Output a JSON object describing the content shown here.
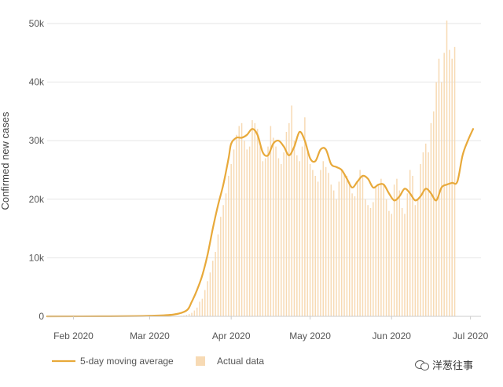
{
  "chart_data": {
    "type": "bar",
    "title": "",
    "ylabel": "Confirmed new cases",
    "xlabel": "",
    "ylim": [
      0,
      50000
    ],
    "yticks": [
      {
        "value": 0,
        "label": "0"
      },
      {
        "value": 10000,
        "label": "10k"
      },
      {
        "value": 20000,
        "label": "20k"
      },
      {
        "value": 30000,
        "label": "30k"
      },
      {
        "value": 40000,
        "label": "40k"
      },
      {
        "value": 50000,
        "label": "50k"
      }
    ],
    "xticks": [
      {
        "date": "2020-02-01",
        "label": "Feb 2020"
      },
      {
        "date": "2020-03-01",
        "label": "Mar 2020"
      },
      {
        "date": "2020-04-01",
        "label": "Apr 2020"
      },
      {
        "date": "2020-05-01",
        "label": "May 2020"
      },
      {
        "date": "2020-06-01",
        "label": "Jun 2020"
      },
      {
        "date": "2020-07-01",
        "label": "Jul 2020"
      }
    ],
    "x_range": [
      "2020-01-22",
      "2020-07-05"
    ],
    "grid": true,
    "legend_position": "bottom-left",
    "series": [
      {
        "name": "5-day moving average",
        "type": "line",
        "color": "#e8a93a",
        "x": [
          "2020-01-22",
          "2020-02-15",
          "2020-03-01",
          "2020-03-10",
          "2020-03-15",
          "2020-03-17",
          "2020-03-19",
          "2020-03-21",
          "2020-03-23",
          "2020-03-25",
          "2020-03-27",
          "2020-03-29",
          "2020-03-31",
          "2020-04-01",
          "2020-04-03",
          "2020-04-05",
          "2020-04-07",
          "2020-04-09",
          "2020-04-11",
          "2020-04-13",
          "2020-04-15",
          "2020-04-17",
          "2020-04-19",
          "2020-04-21",
          "2020-04-23",
          "2020-04-25",
          "2020-04-27",
          "2020-04-29",
          "2020-05-01",
          "2020-05-03",
          "2020-05-05",
          "2020-05-07",
          "2020-05-09",
          "2020-05-11",
          "2020-05-13",
          "2020-05-15",
          "2020-05-17",
          "2020-05-19",
          "2020-05-21",
          "2020-05-23",
          "2020-05-25",
          "2020-05-27",
          "2020-05-29",
          "2020-05-31",
          "2020-06-02",
          "2020-06-04",
          "2020-06-06",
          "2020-06-08",
          "2020-06-10",
          "2020-06-12",
          "2020-06-14",
          "2020-06-16",
          "2020-06-18",
          "2020-06-20",
          "2020-06-22",
          "2020-06-24",
          "2020-06-26",
          "2020-06-28",
          "2020-06-30",
          "2020-07-02"
        ],
        "y": [
          0,
          20,
          100,
          300,
          1000,
          2500,
          4500,
          7000,
          10500,
          15000,
          19000,
          22500,
          27000,
          29500,
          30500,
          30500,
          31000,
          32000,
          31000,
          28000,
          27500,
          29500,
          30000,
          29000,
          27500,
          29000,
          31500,
          30000,
          27000,
          26500,
          28500,
          28500,
          26000,
          25500,
          25000,
          23500,
          22000,
          23000,
          24000,
          23500,
          22000,
          22500,
          22500,
          21000,
          19800,
          20500,
          21800,
          21000,
          19800,
          20500,
          21800,
          21000,
          19800,
          22000,
          22500,
          22800,
          23000,
          27500,
          30000,
          32000
        ]
      },
      {
        "name": "Actual data",
        "type": "bar",
        "color": "#f7dab4",
        "x_start": "2020-01-22",
        "values": [
          0,
          0,
          0,
          0,
          0,
          0,
          0,
          0,
          0,
          0,
          0,
          0,
          0,
          0,
          0,
          0,
          0,
          0,
          0,
          0,
          0,
          0,
          0,
          0,
          0,
          0,
          0,
          0,
          0,
          0,
          0,
          0,
          0,
          0,
          0,
          0,
          0,
          0,
          0,
          0,
          0,
          0,
          0,
          0,
          0,
          0,
          10,
          20,
          30,
          50,
          80,
          100,
          150,
          250,
          400,
          600,
          1000,
          1500,
          2500,
          3000,
          4500,
          6000,
          7500,
          9500,
          11000,
          14000,
          17000,
          19000,
          21000,
          24000,
          26000,
          28500,
          31000,
          32500,
          33000,
          30000,
          28500,
          29000,
          33500,
          33000,
          32000,
          29000,
          26500,
          27000,
          29000,
          32500,
          30500,
          29000,
          27000,
          26000,
          28000,
          31500,
          33000,
          36000,
          30000,
          27500,
          26500,
          29000,
          34000,
          28000,
          26000,
          25000,
          24000,
          23000,
          25000,
          26500,
          25500,
          24500,
          22500,
          21500,
          20000,
          23000,
          25000,
          24500,
          24000,
          23000,
          21000,
          20500,
          23000,
          25000,
          24000,
          20000,
          19000,
          18500,
          19500,
          22000,
          22500,
          23500,
          22500,
          20000,
          18000,
          17500,
          22500,
          23500,
          21500,
          18500,
          17500,
          21000,
          25000,
          24000,
          19000,
          20000,
          26000,
          28000,
          29500,
          28000,
          33000,
          35000,
          40000,
          44000,
          40000,
          45000,
          50500,
          45500,
          44000,
          46000
        ]
      }
    ],
    "legend": [
      {
        "label": "5-day moving average",
        "kind": "line"
      },
      {
        "label": "Actual data",
        "kind": "bar"
      }
    ]
  },
  "watermark": {
    "text": "洋葱往事",
    "icon": "wechat-icon"
  }
}
